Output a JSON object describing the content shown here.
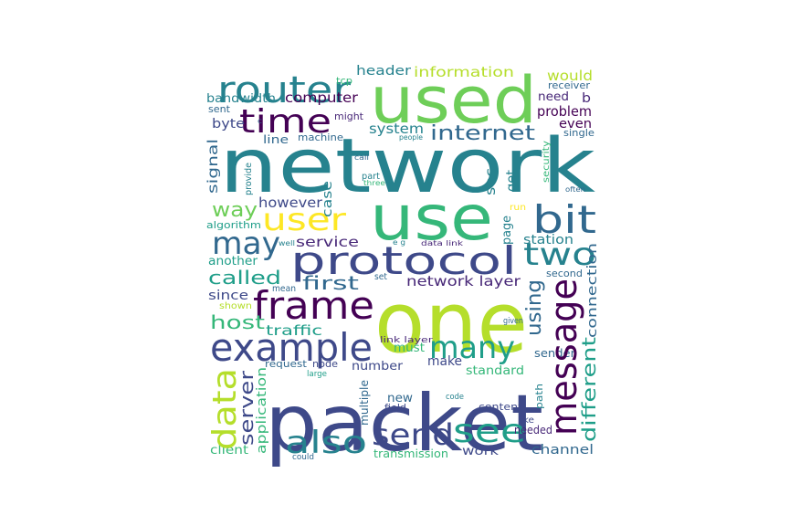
{
  "wordcloud": {
    "background": "#ffffff",
    "palette": {
      "darkpurple": "#440154",
      "indigo": "#482878",
      "slate": "#3e4989",
      "blue": "#31688e",
      "teal": "#26828e",
      "seagreen": "#1f9e89",
      "green": "#35b779",
      "lime": "#6ece58",
      "yellowgreen": "#b5de2b",
      "yellow": "#fde725"
    },
    "words": [
      {
        "id": "network",
        "text": "network",
        "color": "#26828e"
      },
      {
        "id": "packet",
        "text": "packet",
        "color": "#3e4989"
      },
      {
        "id": "one",
        "text": "one",
        "color": "#b5de2b"
      },
      {
        "id": "used",
        "text": "used",
        "color": "#6ece58"
      },
      {
        "id": "use",
        "text": "use",
        "color": "#35b779"
      },
      {
        "id": "protocol",
        "text": "protocol",
        "color": "#3e4989"
      },
      {
        "id": "frame",
        "text": "frame",
        "color": "#440154"
      },
      {
        "id": "example",
        "text": "example",
        "color": "#3e4989"
      },
      {
        "id": "message",
        "text": "message",
        "color": "#440154"
      },
      {
        "id": "router",
        "text": "router",
        "color": "#26828e"
      },
      {
        "id": "time",
        "text": "time",
        "color": "#440154"
      },
      {
        "id": "bit",
        "text": "bit",
        "color": "#31688e"
      },
      {
        "id": "user",
        "text": "user",
        "color": "#fde725"
      },
      {
        "id": "may",
        "text": "may",
        "color": "#31688e"
      },
      {
        "id": "two",
        "text": "two",
        "color": "#26828e"
      },
      {
        "id": "many",
        "text": "many",
        "color": "#1f9e89"
      },
      {
        "id": "data",
        "text": "data",
        "color": "#b5de2b"
      },
      {
        "id": "also",
        "text": "also",
        "color": "#26828e"
      },
      {
        "id": "send",
        "text": "send",
        "color": "#3e4989"
      },
      {
        "id": "see",
        "text": "see",
        "color": "#1f9e89"
      },
      {
        "id": "internet",
        "text": "internet",
        "color": "#31688e"
      },
      {
        "id": "way",
        "text": "way",
        "color": "#6ece58"
      },
      {
        "id": "called",
        "text": "called",
        "color": "#1f9e89"
      },
      {
        "id": "first",
        "text": "first",
        "color": "#31688e"
      },
      {
        "id": "host",
        "text": "host",
        "color": "#35b779"
      },
      {
        "id": "using",
        "text": "using",
        "color": "#31688e"
      },
      {
        "id": "server",
        "text": "server",
        "color": "#3e4989"
      },
      {
        "id": "different",
        "text": "different",
        "color": "#1f9e89"
      },
      {
        "id": "computer",
        "text": "computer",
        "color": "#440154"
      },
      {
        "id": "system",
        "text": "system",
        "color": "#26828e"
      },
      {
        "id": "however",
        "text": "however",
        "color": "#3e4989"
      },
      {
        "id": "service",
        "text": "service",
        "color": "#482878"
      },
      {
        "id": "network_layer",
        "text": "network layer",
        "color": "#482878"
      },
      {
        "id": "information",
        "text": "information",
        "color": "#b5de2b"
      },
      {
        "id": "header",
        "text": "header",
        "color": "#26828e"
      },
      {
        "id": "would",
        "text": "would",
        "color": "#b5de2b"
      },
      {
        "id": "need",
        "text": "need",
        "color": "#482878"
      },
      {
        "id": "b",
        "text": "b",
        "color": "#482878"
      },
      {
        "id": "problem",
        "text": "problem",
        "color": "#440154"
      },
      {
        "id": "even",
        "text": "even",
        "color": "#440154"
      },
      {
        "id": "bandwidth",
        "text": "bandwidth",
        "color": "#26828e"
      },
      {
        "id": "byte",
        "text": "byte",
        "color": "#3e4989"
      },
      {
        "id": "signal",
        "text": "signal",
        "color": "#31688e"
      },
      {
        "id": "traffic",
        "text": "traffic",
        "color": "#1f9e89"
      },
      {
        "id": "since",
        "text": "since",
        "color": "#3e4989"
      },
      {
        "id": "another",
        "text": "another",
        "color": "#1f9e89"
      },
      {
        "id": "algorithm",
        "text": "algorithm",
        "color": "#1f9e89"
      },
      {
        "id": "line",
        "text": "line",
        "color": "#31688e"
      },
      {
        "id": "machine",
        "text": "machine",
        "color": "#31688e"
      },
      {
        "id": "sec",
        "text": "sec",
        "color": "#26828e"
      },
      {
        "id": "get",
        "text": "get",
        "color": "#26828e"
      },
      {
        "id": "case",
        "text": "case",
        "color": "#26828e"
      },
      {
        "id": "page",
        "text": "page",
        "color": "#26828e"
      },
      {
        "id": "station",
        "text": "station",
        "color": "#26828e"
      },
      {
        "id": "connection",
        "text": "connection",
        "color": "#31688e"
      },
      {
        "id": "second",
        "text": "second",
        "color": "#31688e"
      },
      {
        "id": "set",
        "text": "set",
        "color": "#31688e"
      },
      {
        "id": "mean",
        "text": "mean",
        "color": "#31688e"
      },
      {
        "id": "must",
        "text": "must",
        "color": "#35b779"
      },
      {
        "id": "make",
        "text": "make",
        "color": "#3e4989"
      },
      {
        "id": "number",
        "text": "number",
        "color": "#3e4989"
      },
      {
        "id": "standard",
        "text": "standard",
        "color": "#35b779"
      },
      {
        "id": "sender",
        "text": "sender",
        "color": "#31688e"
      },
      {
        "id": "new",
        "text": "new",
        "color": "#31688e"
      },
      {
        "id": "field",
        "text": "field",
        "color": "#3e4989"
      },
      {
        "id": "content",
        "text": "content",
        "color": "#3e4989"
      },
      {
        "id": "path",
        "text": "path",
        "color": "#26828e"
      },
      {
        "id": "work",
        "text": "work",
        "color": "#3e4989"
      },
      {
        "id": "channel",
        "text": "channel",
        "color": "#31688e"
      },
      {
        "id": "transmission",
        "text": "transmission",
        "color": "#35b779"
      },
      {
        "id": "client",
        "text": "client",
        "color": "#35b779"
      },
      {
        "id": "application",
        "text": "application",
        "color": "#35b779"
      },
      {
        "id": "multiple",
        "text": "multiple",
        "color": "#31688e"
      },
      {
        "id": "request",
        "text": "request",
        "color": "#31688e"
      },
      {
        "id": "node",
        "text": "node",
        "color": "#3e4989"
      },
      {
        "id": "needed",
        "text": "needed",
        "color": "#482878"
      },
      {
        "id": "like",
        "text": "like",
        "color": "#3e4989"
      },
      {
        "id": "given",
        "text": "given",
        "color": "#31688e"
      },
      {
        "id": "code",
        "text": "code",
        "color": "#26828e"
      },
      {
        "id": "large",
        "text": "large",
        "color": "#1f9e89"
      },
      {
        "id": "could",
        "text": "could",
        "color": "#31688e"
      },
      {
        "id": "link_layer",
        "text": "link layer",
        "color": "#482878"
      },
      {
        "id": "shown",
        "text": "shown",
        "color": "#b5de2b"
      },
      {
        "id": "well",
        "text": "well",
        "color": "#26828e"
      },
      {
        "id": "e_g",
        "text": "e g",
        "color": "#26828e"
      },
      {
        "id": "data_link",
        "text": "data link",
        "color": "#482878"
      },
      {
        "id": "run",
        "text": "run",
        "color": "#fde725"
      },
      {
        "id": "often",
        "text": "often",
        "color": "#31688e"
      },
      {
        "id": "three",
        "text": "three",
        "color": "#35b779"
      },
      {
        "id": "part",
        "text": "part",
        "color": "#26828e"
      },
      {
        "id": "security",
        "text": "security",
        "color": "#35b779"
      },
      {
        "id": "people",
        "text": "people",
        "color": "#26828e"
      },
      {
        "id": "call",
        "text": "call",
        "color": "#31688e"
      },
      {
        "id": "provide",
        "text": "provide",
        "color": "#26828e"
      },
      {
        "id": "might",
        "text": "might",
        "color": "#482878"
      },
      {
        "id": "sent",
        "text": "sent",
        "color": "#31688e"
      },
      {
        "id": "c",
        "text": "c",
        "color": "#31688e"
      },
      {
        "id": "tcp",
        "text": "tcp",
        "color": "#35b779"
      },
      {
        "id": "receiver",
        "text": "receiver",
        "color": "#31688e"
      },
      {
        "id": "single",
        "text": "single",
        "color": "#31688e"
      }
    ]
  }
}
